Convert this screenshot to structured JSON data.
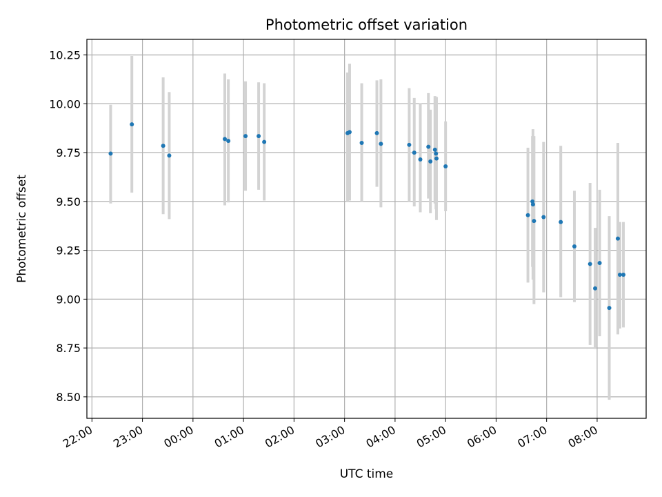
{
  "chart_data": {
    "type": "scatter",
    "title": "Photometric offset variation",
    "xlabel": "UTC time",
    "ylabel": "Photometric offset",
    "grid": true,
    "x_unit": "hours UTC (22.0 = 22:00 on first night; values above 24 are after midnight)",
    "xlim": [
      21.9,
      32.97
    ],
    "ylim": [
      8.39,
      10.33
    ],
    "x_ticks": [
      {
        "v": 22,
        "label": "22:00"
      },
      {
        "v": 23,
        "label": "23:00"
      },
      {
        "v": 24,
        "label": "00:00"
      },
      {
        "v": 25,
        "label": "01:00"
      },
      {
        "v": 26,
        "label": "02:00"
      },
      {
        "v": 27,
        "label": "03:00"
      },
      {
        "v": 28,
        "label": "04:00"
      },
      {
        "v": 29,
        "label": "05:00"
      },
      {
        "v": 30,
        "label": "06:00"
      },
      {
        "v": 31,
        "label": "07:00"
      },
      {
        "v": 32,
        "label": "08:00"
      }
    ],
    "y_ticks": [
      {
        "v": 8.5,
        "label": "8.50"
      },
      {
        "v": 8.75,
        "label": "8.75"
      },
      {
        "v": 9.0,
        "label": "9.00"
      },
      {
        "v": 9.25,
        "label": "9.25"
      },
      {
        "v": 9.5,
        "label": "9.50"
      },
      {
        "v": 9.75,
        "label": "9.75"
      },
      {
        "v": 10.0,
        "label": "10.00"
      },
      {
        "v": 10.25,
        "label": "10.25"
      }
    ],
    "colors": {
      "point": "#1f77b4",
      "errorbar": "#d3d3d3",
      "grid": "#b0b0b0"
    },
    "points": [
      {
        "x": 22.37,
        "y": 9.745,
        "lo": 9.49,
        "hi": 9.995
      },
      {
        "x": 22.79,
        "y": 9.895,
        "lo": 9.545,
        "hi": 10.245
      },
      {
        "x": 23.41,
        "y": 9.785,
        "lo": 9.435,
        "hi": 10.135
      },
      {
        "x": 23.53,
        "y": 9.735,
        "lo": 9.41,
        "hi": 10.06
      },
      {
        "x": 24.63,
        "y": 9.82,
        "lo": 9.48,
        "hi": 10.155
      },
      {
        "x": 24.7,
        "y": 9.81,
        "lo": 9.495,
        "hi": 10.125
      },
      {
        "x": 25.04,
        "y": 9.835,
        "lo": 9.555,
        "hi": 10.115
      },
      {
        "x": 25.3,
        "y": 9.835,
        "lo": 9.56,
        "hi": 10.11
      },
      {
        "x": 25.41,
        "y": 9.805,
        "lo": 9.505,
        "hi": 10.105
      },
      {
        "x": 27.06,
        "y": 9.85,
        "lo": 9.5,
        "hi": 10.16
      },
      {
        "x": 27.1,
        "y": 9.855,
        "lo": 9.505,
        "hi": 10.205
      },
      {
        "x": 27.34,
        "y": 9.8,
        "lo": 9.5,
        "hi": 10.105
      },
      {
        "x": 27.64,
        "y": 9.85,
        "lo": 9.575,
        "hi": 10.12
      },
      {
        "x": 27.72,
        "y": 9.795,
        "lo": 9.47,
        "hi": 10.125
      },
      {
        "x": 28.28,
        "y": 9.79,
        "lo": 9.5,
        "hi": 10.08
      },
      {
        "x": 28.38,
        "y": 9.75,
        "lo": 9.475,
        "hi": 10.03
      },
      {
        "x": 28.5,
        "y": 9.715,
        "lo": 9.445,
        "hi": 10.0
      },
      {
        "x": 28.66,
        "y": 9.78,
        "lo": 9.515,
        "hi": 10.055
      },
      {
        "x": 28.7,
        "y": 9.705,
        "lo": 9.44,
        "hi": 9.97
      },
      {
        "x": 28.79,
        "y": 9.765,
        "lo": 9.49,
        "hi": 10.04
      },
      {
        "x": 28.81,
        "y": 9.745,
        "lo": 9.46,
        "hi": 10.03
      },
      {
        "x": 28.82,
        "y": 9.72,
        "lo": 9.405,
        "hi": 10.035
      },
      {
        "x": 29.0,
        "y": 9.68,
        "lo": 9.45,
        "hi": 9.91
      },
      {
        "x": 30.63,
        "y": 9.43,
        "lo": 9.085,
        "hi": 9.775
      },
      {
        "x": 30.72,
        "y": 9.5,
        "lo": 9.165,
        "hi": 9.835
      },
      {
        "x": 30.73,
        "y": 9.485,
        "lo": 9.1,
        "hi": 9.87
      },
      {
        "x": 30.75,
        "y": 9.4,
        "lo": 8.975,
        "hi": 9.835
      },
      {
        "x": 30.94,
        "y": 9.42,
        "lo": 9.035,
        "hi": 9.805
      },
      {
        "x": 31.28,
        "y": 9.395,
        "lo": 9.01,
        "hi": 9.785
      },
      {
        "x": 31.55,
        "y": 9.27,
        "lo": 8.985,
        "hi": 9.555
      },
      {
        "x": 31.86,
        "y": 9.18,
        "lo": 8.765,
        "hi": 9.595
      },
      {
        "x": 31.96,
        "y": 9.055,
        "lo": 8.745,
        "hi": 9.365
      },
      {
        "x": 32.05,
        "y": 9.185,
        "lo": 8.81,
        "hi": 9.56
      },
      {
        "x": 32.24,
        "y": 8.955,
        "lo": 8.485,
        "hi": 9.425
      },
      {
        "x": 32.41,
        "y": 9.31,
        "lo": 8.82,
        "hi": 9.8
      },
      {
        "x": 32.45,
        "y": 9.125,
        "lo": 8.85,
        "hi": 9.395
      },
      {
        "x": 32.52,
        "y": 9.125,
        "lo": 8.855,
        "hi": 9.395
      }
    ]
  }
}
